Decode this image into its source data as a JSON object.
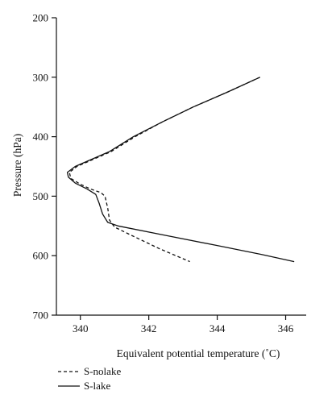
{
  "chart_data": {
    "type": "line",
    "xlabel": "Equivalent potential temperature (˚C)",
    "ylabel": "Pressure (hPa)",
    "xlim": [
      339.3,
      346.6
    ],
    "ylim": [
      200,
      700
    ],
    "y_inverted": true,
    "x_ticks": [
      340,
      342,
      344,
      346
    ],
    "y_ticks": [
      200,
      300,
      400,
      500,
      600,
      700
    ],
    "legend_position": "bottom-left, below plot",
    "series": [
      {
        "name": "S-nolake",
        "line_style": "dashed",
        "color": "#111111",
        "points": [
          [
            345.25,
            300
          ],
          [
            344.3,
            325
          ],
          [
            343.3,
            350
          ],
          [
            342.4,
            375
          ],
          [
            341.6,
            400
          ],
          [
            340.9,
            425
          ],
          [
            340.3,
            440
          ],
          [
            339.9,
            450
          ],
          [
            339.68,
            460
          ],
          [
            339.72,
            470
          ],
          [
            340.0,
            480
          ],
          [
            340.3,
            488
          ],
          [
            340.6,
            494
          ],
          [
            340.72,
            500
          ],
          [
            340.8,
            520
          ],
          [
            340.85,
            540
          ],
          [
            341.0,
            552
          ],
          [
            341.5,
            566
          ],
          [
            342.3,
            588
          ],
          [
            343.2,
            610
          ]
        ]
      },
      {
        "name": "S-lake",
        "line_style": "solid",
        "color": "#111111",
        "points": [
          [
            345.25,
            300
          ],
          [
            344.3,
            325
          ],
          [
            343.3,
            350
          ],
          [
            342.4,
            375
          ],
          [
            341.55,
            400
          ],
          [
            340.85,
            425
          ],
          [
            340.25,
            440
          ],
          [
            339.85,
            450
          ],
          [
            339.62,
            460
          ],
          [
            339.65,
            468
          ],
          [
            339.85,
            478
          ],
          [
            340.2,
            488
          ],
          [
            340.45,
            497
          ],
          [
            340.55,
            512
          ],
          [
            340.65,
            530
          ],
          [
            340.8,
            544
          ],
          [
            341.1,
            550
          ],
          [
            342.5,
            566
          ],
          [
            344.0,
            583
          ],
          [
            345.3,
            598
          ],
          [
            346.25,
            610
          ]
        ]
      }
    ]
  }
}
